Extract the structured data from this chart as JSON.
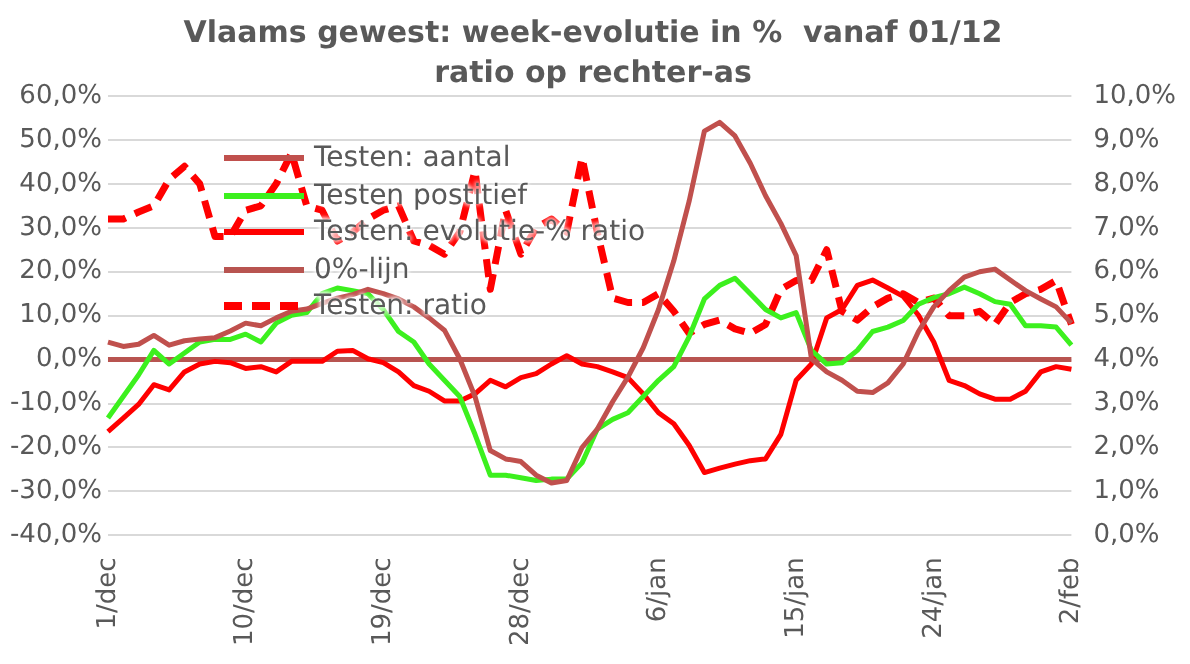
{
  "chart_data": {
    "type": "line",
    "title": "Vlaams gewest: week-evolutie in %  vanaf 01/12",
    "subtitle": "ratio op rechter-as",
    "categories": [
      "1/dec",
      null,
      null,
      null,
      null,
      null,
      null,
      null,
      null,
      "10/dec",
      null,
      null,
      null,
      null,
      null,
      null,
      null,
      null,
      "19/dec",
      null,
      null,
      null,
      null,
      null,
      null,
      null,
      null,
      "28/dec",
      null,
      null,
      null,
      null,
      null,
      null,
      null,
      null,
      "6/jan",
      null,
      null,
      null,
      null,
      null,
      null,
      null,
      null,
      "15/jan",
      null,
      null,
      null,
      null,
      null,
      null,
      null,
      null,
      "24/jan",
      null,
      null,
      null,
      null,
      null,
      null,
      null,
      null,
      "2/feb"
    ],
    "series": [
      {
        "name": "Testen: aantal",
        "color": "#c0504d",
        "values": [
          4,
          3,
          3.5,
          5.5,
          3.3,
          4.3,
          4.7,
          5,
          6.5,
          8.3,
          7.7,
          9.5,
          11,
          11.5,
          12.8,
          14,
          14.8,
          16,
          15,
          13.8,
          12,
          9.5,
          6.7,
          0.2,
          -8.4,
          -20.7,
          -22.6,
          -23.2,
          -26.3,
          -28.1,
          -27.5,
          -20,
          -15.8,
          -9.6,
          -4,
          2.7,
          11.4,
          22.5,
          36,
          52,
          54,
          50.9,
          44.7,
          37.3,
          31,
          23.7,
          0.2,
          -2.8,
          -4.7,
          -7.2,
          -7.5,
          -5.3,
          -1,
          6.4,
          12,
          15.7,
          18.8,
          20,
          20.6,
          18.1,
          15.7,
          13.8,
          12,
          8.3
        ]
      },
      {
        "name": "Testen postitief",
        "color": "#3cf01e",
        "values": [
          -13.3,
          -8.4,
          -3.5,
          2.1,
          -1,
          1.5,
          4,
          4.6,
          4.6,
          5.8,
          4,
          8.3,
          10.1,
          10.7,
          15,
          16.3,
          15.7,
          15,
          11.4,
          6.4,
          4,
          -1,
          -4.7,
          -8.4,
          -17,
          -26.3,
          -26.3,
          -26.9,
          -27.5,
          -27.2,
          -27.2,
          -23.5,
          -15.8,
          -13.6,
          -12.1,
          -8.4,
          -4.7,
          -1.6,
          5.2,
          13.8,
          16.9,
          18.5,
          15,
          11.4,
          9.5,
          10.7,
          2.1,
          -1,
          -0.7,
          2.1,
          6.4,
          7.4,
          8.9,
          12.6,
          14.1,
          15,
          16.5,
          15,
          13.2,
          12.6,
          7.7,
          7.7,
          7.4,
          3.3
        ]
      },
      {
        "name": "Testen: evolutie-% ratio",
        "color": "#ff0000",
        "values": [
          -16.4,
          -13.3,
          -10.2,
          -5.7,
          -6.9,
          -2.8,
          -1,
          -0.4,
          -0.7,
          -2,
          -1.6,
          -2.8,
          -0.4,
          -0.4,
          -0.4,
          1.9,
          2.1,
          0.2,
          -0.7,
          -2.8,
          -5.9,
          -7.2,
          -9.4,
          -9.4,
          -7.8,
          -4.7,
          -6.2,
          -4.1,
          -3.2,
          -1,
          0.9,
          -1,
          -1.6,
          -2.8,
          -4.1,
          -7.8,
          -12.1,
          -14.6,
          -19.5,
          -25.7,
          -24.7,
          -23.8,
          -23,
          -22.6,
          -17,
          -4.7,
          -1,
          9.5,
          11.4,
          16.9,
          18.1,
          16.3,
          14.4,
          10.1,
          4,
          -4.7,
          -5.9,
          -7.8,
          -9,
          -9,
          -7.2,
          -2.8,
          -1.6,
          -2.2
        ]
      },
      {
        "name": "0%-lijn",
        "color": "#b85450",
        "values": [
          0,
          0,
          0,
          0,
          0,
          0,
          0,
          0,
          0,
          0,
          0,
          0,
          0,
          0,
          0,
          0,
          0,
          0,
          0,
          0,
          0,
          0,
          0,
          0,
          0,
          0,
          0,
          0,
          0,
          0,
          0,
          0,
          0,
          0,
          0,
          0,
          0,
          0,
          0,
          0,
          0,
          0,
          0,
          0,
          0,
          0,
          0,
          0,
          0,
          0,
          0,
          0,
          0,
          0,
          0,
          0,
          0,
          0,
          0,
          0,
          0,
          0,
          0,
          0
        ]
      },
      {
        "name": "Testen: ratio",
        "color": "#ff0000",
        "axis": "y2",
        "line_style": "dashed",
        "values": [
          7.2,
          7.2,
          7.36,
          7.5,
          8.1,
          8.4,
          8,
          6.8,
          6.8,
          7.4,
          7.5,
          8,
          8.7,
          7.5,
          7.4,
          6.7,
          6.9,
          7.2,
          7.4,
          7.5,
          6.7,
          6.6,
          6.4,
          6.9,
          8.3,
          5.6,
          7.4,
          6.4,
          7,
          7.2,
          6.9,
          8.6,
          6.9,
          5.4,
          5.3,
          5.3,
          5.5,
          5.1,
          4.6,
          4.8,
          4.9,
          4.7,
          4.6,
          4.8,
          5.6,
          5.8,
          5.8,
          6.5,
          5.1,
          4.9,
          5.2,
          5.4,
          5.5,
          5.3,
          5.4,
          5,
          5,
          5.1,
          4.8,
          5.3,
          5.5,
          5.6,
          5.8,
          4.8
        ]
      }
    ],
    "ylim": [
      -40,
      60
    ],
    "yticks": [
      {
        "value": -40,
        "label": "-40,0%"
      },
      {
        "value": -30,
        "label": "-30,0%"
      },
      {
        "value": -20,
        "label": "-20,0%"
      },
      {
        "value": -10,
        "label": "-10,0%"
      },
      {
        "value": 0,
        "label": "0,0%"
      },
      {
        "value": 10,
        "label": "10,0%"
      },
      {
        "value": 20,
        "label": "20,0%"
      },
      {
        "value": 30,
        "label": "30,0%"
      },
      {
        "value": 40,
        "label": "40,0%"
      },
      {
        "value": 50,
        "label": "50,0%"
      },
      {
        "value": 60,
        "label": "60,0%"
      }
    ],
    "y2lim": [
      0,
      10
    ],
    "y2ticks": [
      {
        "value": 0,
        "label": "0,0%"
      },
      {
        "value": 1,
        "label": "1,0%"
      },
      {
        "value": 2,
        "label": "2,0%"
      },
      {
        "value": 3,
        "label": "3,0%"
      },
      {
        "value": 4,
        "label": "4,0%"
      },
      {
        "value": 5,
        "label": "5,0%"
      },
      {
        "value": 6,
        "label": "6,0%"
      },
      {
        "value": 7,
        "label": "7,0%"
      },
      {
        "value": 8,
        "label": "8,0%"
      },
      {
        "value": 9,
        "label": "9,0%"
      },
      {
        "value": 10,
        "label": "10,0%"
      }
    ],
    "grid": "y",
    "legend": "top left",
    "marker": "none",
    "line_style": "solid"
  }
}
